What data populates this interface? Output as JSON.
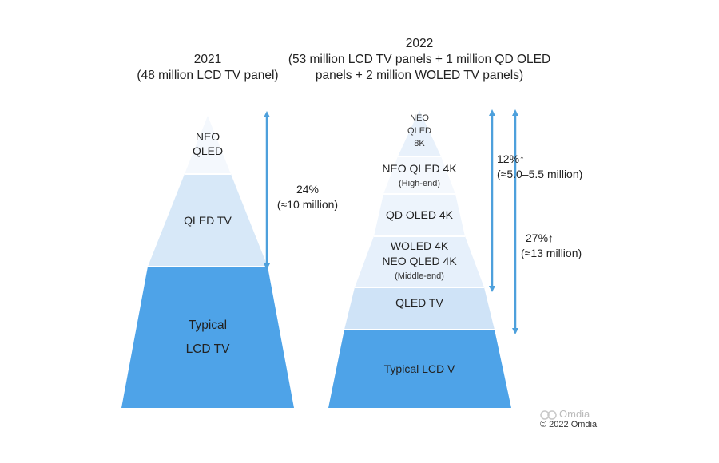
{
  "left_pyramid": {
    "year": "2021",
    "subtitle": "(48 million LCD TV panel)",
    "layers": [
      {
        "label_lines": [
          "NEO",
          "QLED"
        ],
        "color": "#f4f8fd"
      },
      {
        "label_lines": [
          "QLED TV"
        ],
        "color": "#d7e8f8"
      },
      {
        "label_lines": [
          "Typical",
          "LCD TV"
        ],
        "color": "#4ea3e8"
      }
    ],
    "annotation": {
      "line1": "24%",
      "line2": "(≈10 million)"
    }
  },
  "right_pyramid": {
    "year": "2022",
    "subtitle_lines": [
      "(53 million LCD TV panels + 1 million QD OLED",
      "panels + 2 million WOLED TV panels)"
    ],
    "layers": [
      {
        "label_lines": [
          "NEO",
          "QLED",
          "8K"
        ],
        "color": "#e8f1fb"
      },
      {
        "label_lines": [
          "NEO QLED 4K"
        ],
        "sub": "(High-end)",
        "color": "#f4f8fd"
      },
      {
        "label_lines": [
          "QD OLED 4K"
        ],
        "color": "#edf4fc"
      },
      {
        "label_lines": [
          "WOLED 4K",
          "NEO QLED 4K"
        ],
        "sub": "(Middle-end)",
        "color": "#e6f0fb"
      },
      {
        "label_lines": [
          "QLED TV"
        ],
        "color": "#cfe3f7"
      },
      {
        "label_lines": [
          "Typical LCD V"
        ],
        "color": "#4ea3e8"
      }
    ],
    "annotation_high": {
      "line1": "12%↑",
      "line2": "(≈5.0–5.5 million)"
    },
    "annotation_mid": {
      "line1": "27%↑",
      "line2": "(≈13 million)"
    }
  },
  "watermark": {
    "logo_text": "Omdia",
    "copyright": "© 2022 Omdia"
  },
  "colors": {
    "arrow": "#4da0dc",
    "divider": "#ffffff"
  }
}
